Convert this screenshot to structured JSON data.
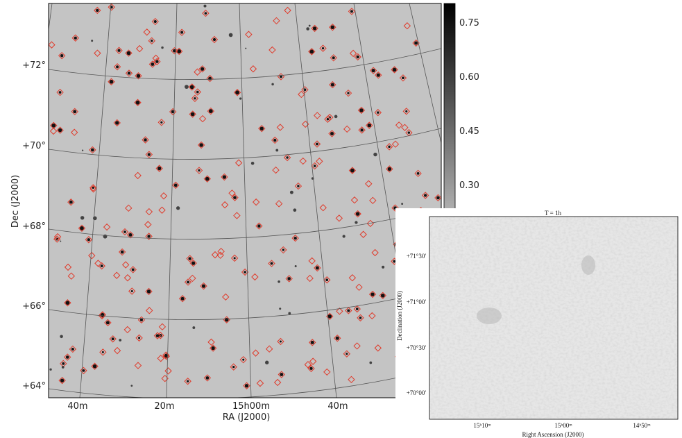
{
  "left_panel": {
    "colorbar_ticks": [
      {
        "value": 0.75,
        "label": "0.75"
      },
      {
        "value": 0.6,
        "label": "0.60"
      },
      {
        "value": 0.45,
        "label": "0.45"
      },
      {
        "value": 0.3,
        "label": "0.30"
      }
    ],
    "yticks": [
      "+72°",
      "+70°",
      "+68°",
      "+66°",
      "+64°"
    ],
    "xticks": [
      "40m",
      "20m",
      "15h00m",
      "40m"
    ],
    "xlabel": "RA (J2000)",
    "ylabel": "Dec (J2000)"
  },
  "right_panel": {
    "title": "T = 1h",
    "yticks": [
      "+71°30'",
      "+71°00'",
      "+70°30'",
      "+70°00'"
    ],
    "xticks": [
      "15ʰ10ᵐ",
      "15ʰ00ᵐ",
      "14ʰ50ᵐ"
    ],
    "xlabel": "Right Ascension (J2000)",
    "ylabel": "Declination (J2000)"
  }
}
